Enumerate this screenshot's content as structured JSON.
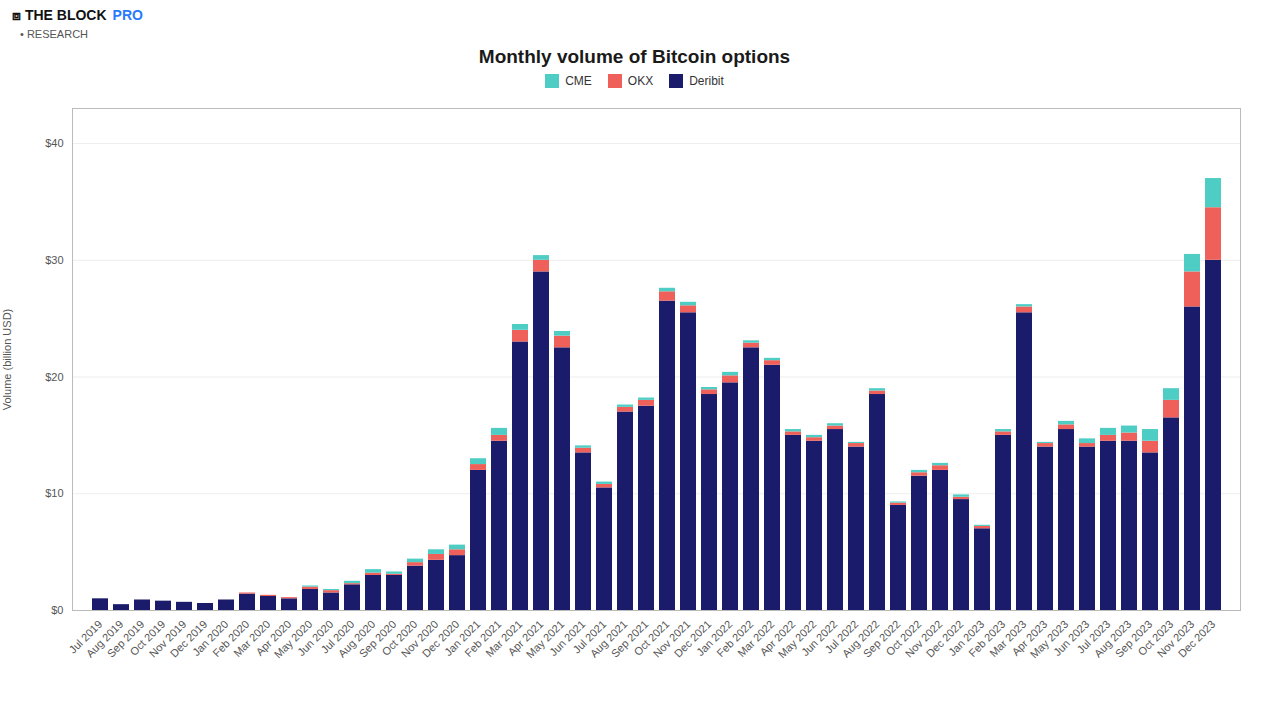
{
  "chart_data": {
    "type": "bar",
    "title": "Monthly volume of Bitcoin options",
    "ylabel": "Volume (billion USD)",
    "annotations": [
      {
        "text": "⧈ THE BLOCK"
      },
      {
        "text": "PRO",
        "color": "#2979ff"
      },
      {
        "text": "• RESEARCH"
      }
    ],
    "stacked": true,
    "grid": true,
    "legend": "top",
    "categories": [
      "Jul 2019",
      "Aug 2019",
      "Sep 2019",
      "Oct 2019",
      "Nov 2019",
      "Dec 2019",
      "Jan 2020",
      "Feb 2020",
      "Mar 2020",
      "Apr 2020",
      "May 2020",
      "Jun 2020",
      "Jul 2020",
      "Aug 2020",
      "Sep 2020",
      "Oct 2020",
      "Nov 2020",
      "Dec 2020",
      "Jan 2021",
      "Feb 2021",
      "Mar 2021",
      "Apr 2021",
      "May 2021",
      "Jun 2021",
      "Jul 2021",
      "Aug 2021",
      "Sep 2021",
      "Oct 2021",
      "Nov 2021",
      "Dec 2021",
      "Jan 2022",
      "Feb 2022",
      "Mar 2022",
      "Apr 2022",
      "May 2022",
      "Jun 2022",
      "Jul 2022",
      "Aug 2022",
      "Sep 2022",
      "Oct 2022",
      "Nov 2022",
      "Dec 2022",
      "Jan 2023",
      "Feb 2023",
      "Mar 2023",
      "Apr 2023",
      "May 2023",
      "Jun 2023",
      "Jul 2023",
      "Aug 2023",
      "Sep 2023",
      "Oct 2023",
      "Nov 2023",
      "Dec 2023"
    ],
    "series": [
      {
        "name": "Deribit",
        "color": "#1b1b6b",
        "values": [
          1.0,
          0.5,
          0.9,
          0.8,
          0.7,
          0.6,
          0.9,
          1.4,
          1.2,
          1.0,
          1.8,
          1.5,
          2.2,
          3.0,
          3.0,
          3.8,
          4.3,
          4.7,
          12.0,
          14.5,
          23.0,
          29.0,
          22.5,
          13.5,
          10.5,
          17.0,
          17.5,
          26.5,
          25.5,
          18.5,
          19.5,
          22.5,
          21.0,
          15.0,
          14.5,
          15.5,
          14.0,
          18.5,
          9.0,
          11.5,
          12.0,
          9.5,
          7.0,
          15.0,
          25.5,
          14.0,
          15.5,
          14.0,
          14.5,
          14.5,
          13.5,
          16.5,
          26.0,
          30.0
        ]
      },
      {
        "name": "OKX",
        "color": "#f0605a",
        "values": [
          0.0,
          0.0,
          0.0,
          0.0,
          0.0,
          0.0,
          0.0,
          0.1,
          0.1,
          0.1,
          0.2,
          0.2,
          0.1,
          0.2,
          0.1,
          0.3,
          0.5,
          0.5,
          0.5,
          0.5,
          1.0,
          1.0,
          1.0,
          0.4,
          0.3,
          0.4,
          0.5,
          0.8,
          0.6,
          0.4,
          0.6,
          0.4,
          0.4,
          0.3,
          0.3,
          0.3,
          0.3,
          0.3,
          0.2,
          0.3,
          0.4,
          0.2,
          0.2,
          0.3,
          0.5,
          0.3,
          0.4,
          0.3,
          0.5,
          0.7,
          1.0,
          1.5,
          3.0,
          4.5
        ]
      },
      {
        "name": "CME",
        "color": "#4ecdc4",
        "values": [
          0.0,
          0.0,
          0.0,
          0.0,
          0.0,
          0.0,
          0.0,
          0.0,
          0.0,
          0.0,
          0.1,
          0.1,
          0.2,
          0.3,
          0.2,
          0.3,
          0.4,
          0.4,
          0.5,
          0.6,
          0.5,
          0.4,
          0.4,
          0.2,
          0.2,
          0.2,
          0.2,
          0.3,
          0.3,
          0.2,
          0.3,
          0.2,
          0.2,
          0.2,
          0.2,
          0.2,
          0.1,
          0.2,
          0.1,
          0.2,
          0.2,
          0.2,
          0.1,
          0.2,
          0.2,
          0.1,
          0.3,
          0.4,
          0.6,
          0.6,
          1.0,
          1.0,
          1.5,
          2.5
        ]
      }
    ],
    "ylim": [
      0,
      43
    ],
    "yticks": [
      {
        "value": 0,
        "label": "$0"
      },
      {
        "value": 10,
        "label": "$10"
      },
      {
        "value": 20,
        "label": "$20"
      },
      {
        "value": 30,
        "label": "$30"
      },
      {
        "value": 40,
        "label": "$40"
      }
    ]
  }
}
